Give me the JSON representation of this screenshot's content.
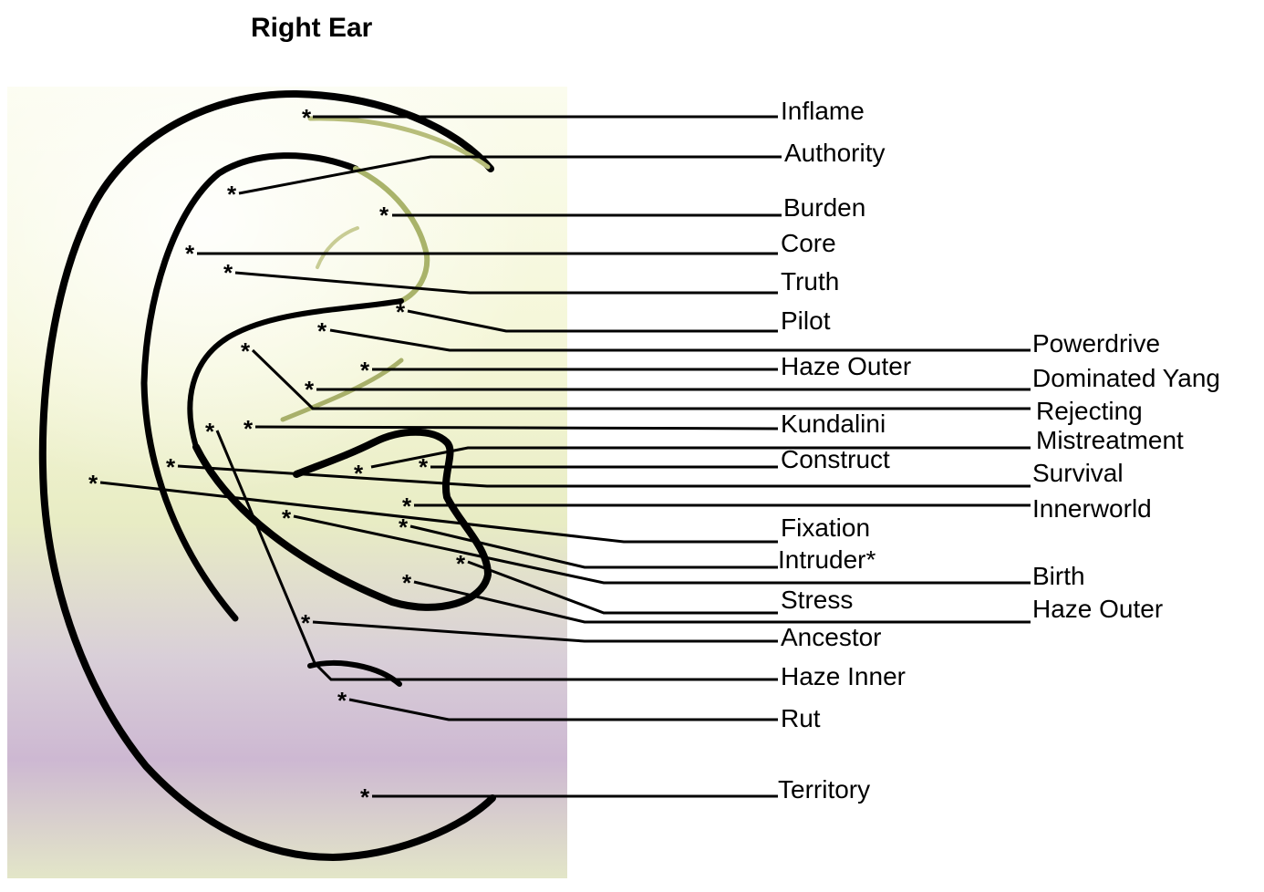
{
  "title": "Right Ear",
  "colors": {
    "ink": "#000000",
    "background_cream": "#fafbe8",
    "background_green": "#e9efc2",
    "background_lavender": "#c9b2cf",
    "inner_curve_green": "#a8b06a"
  },
  "marker_symbol": "*",
  "labels": {
    "inflame": "Inflame",
    "authority": "Authority",
    "burden": "Burden",
    "core": "Core",
    "truth": "Truth",
    "pilot": "Pilot",
    "powerdrive": "Powerdrive",
    "haze_outer_upper": "Haze Outer",
    "dominated_yang": "Dominated Yang",
    "rejecting": "Rejecting",
    "kundalini": "Kundalini",
    "mistreatment": "Mistreatment",
    "construct": "Construct",
    "survival": "Survival",
    "innerworld": "Innerworld",
    "fixation": "Fixation",
    "intruder": "Intruder*",
    "birth": "Birth",
    "stress": "Stress",
    "haze_outer_lower": "Haze Outer",
    "ancestor": "Ancestor",
    "haze_inner": "Haze Inner",
    "rut": "Rut",
    "territory": "Territory"
  }
}
